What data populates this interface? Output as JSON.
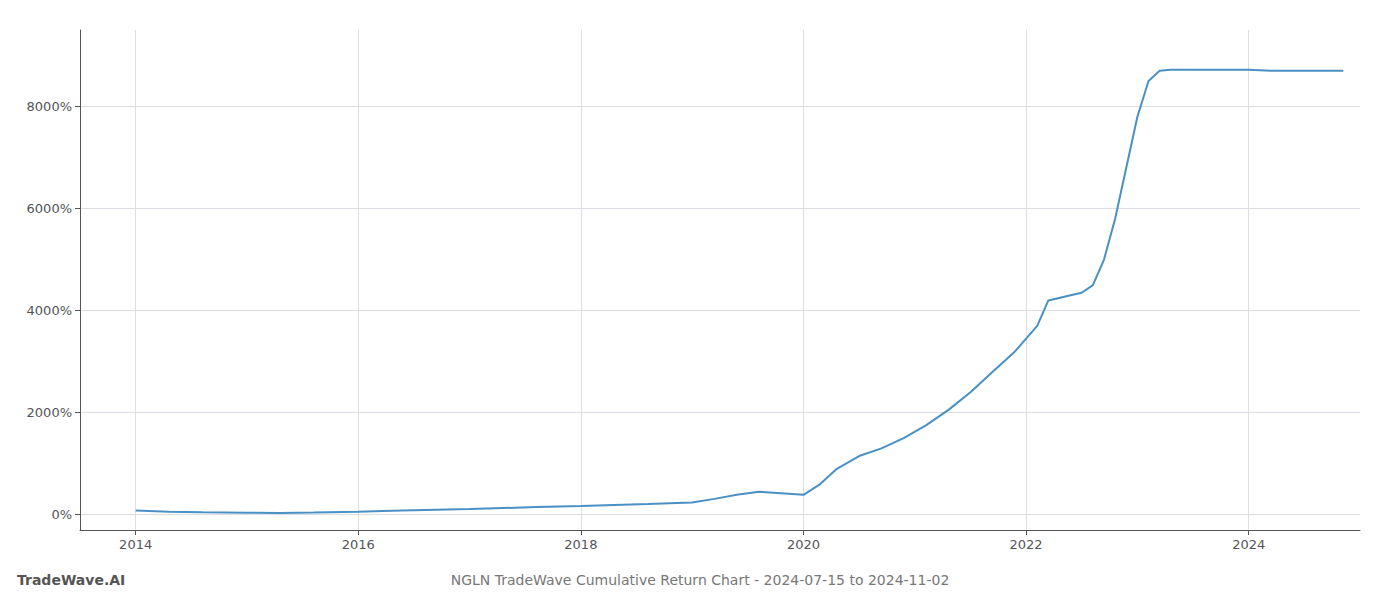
{
  "chart_data": {
    "type": "line",
    "title": "NGLN TradeWave Cumulative Return Chart - 2024-07-15 to 2024-11-02",
    "annotations": [
      "TradeWave.AI"
    ],
    "color": "#4a90c4",
    "x": [
      2014.0,
      2014.3,
      2014.6,
      2015.0,
      2015.3,
      2015.6,
      2016.0,
      2016.3,
      2016.6,
      2017.0,
      2017.3,
      2017.6,
      2018.0,
      2018.3,
      2018.6,
      2019.0,
      2019.2,
      2019.4,
      2019.6,
      2019.8,
      2020.0,
      2020.15,
      2020.3,
      2020.5,
      2020.7,
      2020.9,
      2021.1,
      2021.3,
      2021.5,
      2021.7,
      2021.9,
      2022.1,
      2022.2,
      2022.4,
      2022.5,
      2022.6,
      2022.7,
      2022.8,
      2022.9,
      2023.0,
      2023.1,
      2023.2,
      2023.3,
      2023.5,
      2023.7,
      2023.9,
      2024.0,
      2024.2,
      2024.4,
      2024.6,
      2024.85
    ],
    "values": [
      80,
      60,
      50,
      40,
      35,
      45,
      60,
      75,
      90,
      110,
      130,
      150,
      170,
      190,
      210,
      240,
      310,
      390,
      450,
      420,
      390,
      600,
      900,
      1150,
      1300,
      1500,
      1750,
      2050,
      2400,
      2800,
      3200,
      3700,
      4200,
      4300,
      4350,
      4500,
      5000,
      5800,
      6800,
      7800,
      8500,
      8700,
      8720,
      8720,
      8720,
      8720,
      8720,
      8700,
      8700,
      8700,
      8700
    ],
    "xlim": [
      2013.5,
      2025.0
    ],
    "ylim": [
      -300,
      9500
    ],
    "xticks": [
      2014,
      2016,
      2018,
      2020,
      2022,
      2024
    ],
    "yticks": [
      {
        "value": 0,
        "label": "0%"
      },
      {
        "value": 2000,
        "label": "2000%"
      },
      {
        "value": 4000,
        "label": "4000%"
      },
      {
        "value": 6000,
        "label": "6000%"
      },
      {
        "value": 8000,
        "label": "8000%"
      }
    ],
    "grid": true
  }
}
